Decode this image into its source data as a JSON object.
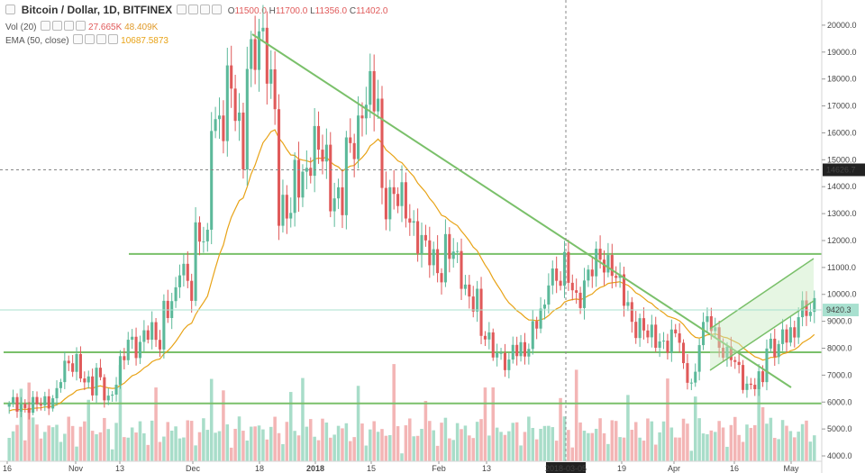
{
  "header": {
    "symbol": "Bitcoin / Dollar, 1D, BITFINEX",
    "ohlc": {
      "o_label": "O",
      "o": "11500.0",
      "h_label": "H",
      "h": "11700.0",
      "l_label": "L",
      "l": "11356.0",
      "c_label": "C",
      "c": "11402.0"
    },
    "vol": {
      "label": "Vol (20)",
      "value1": "27.665K",
      "value2": "48.409K"
    },
    "ema": {
      "label": "EMA (50, close)",
      "value": "10687.5873"
    }
  },
  "colors": {
    "up": "#5cb99a",
    "down": "#e05a5a",
    "up_vol": "#a8ddc9",
    "down_vol": "#f3b5b5",
    "ema": "#e8a317",
    "trend": "#7ac06a",
    "channel_fill": "#c8eac0",
    "label_bg": "#222222",
    "price_badge": "#a8e0cf"
  },
  "chart_data": {
    "type": "candlestick",
    "title": "Bitcoin / Dollar, 1D, BITFINEX",
    "ylim": [
      3800,
      20600
    ],
    "y_ticks": [
      "20000.0",
      "19000.0",
      "18000.0",
      "17000.0",
      "16000.0",
      "15000.0",
      "14000.0",
      "13000.0",
      "12000.0",
      "11000.0",
      "10000.0",
      "9000.0",
      "8000.0",
      "7000.0",
      "6000.0",
      "5000.0",
      "4000.0"
    ],
    "x_ticks": [
      "16",
      "Nov",
      "13",
      "Dec",
      "18",
      "2018",
      "15",
      "Feb",
      "13",
      "19",
      "Apr",
      "16",
      "May"
    ],
    "crosshair_date": "2018-03-05",
    "crosshair_price": "14626.7",
    "last_price": "9420.3",
    "horizontal_levels": [
      11500,
      7850,
      5950
    ],
    "price_anchors": [
      [
        5600,
        5800
      ],
      [
        5900,
        6000
      ],
      [
        5800,
        5800
      ],
      [
        6600,
        7000
      ],
      [
        7400,
        7600
      ],
      [
        6300,
        7200
      ],
      [
        6100,
        6200
      ],
      [
        7800,
        8300
      ],
      [
        8200,
        8500
      ],
      [
        8300,
        9600
      ],
      [
        9700,
        11000
      ],
      [
        10400,
        12500
      ],
      [
        11400,
        16600
      ],
      [
        16800,
        17800
      ],
      [
        15200,
        19200
      ],
      [
        18900,
        19300
      ],
      [
        17200,
        13200
      ],
      [
        12600,
        14400
      ],
      [
        14900,
        15200
      ],
      [
        15200,
        14200
      ],
      [
        13000,
        14800
      ],
      [
        16800,
        17200
      ],
      [
        17000,
        14000
      ],
      [
        13600,
        13400
      ],
      [
        13000,
        12800
      ],
      [
        11200,
        11300
      ],
      [
        11000,
        11900
      ],
      [
        10600,
        10500
      ],
      [
        9600,
        8400
      ],
      [
        8100,
        8100
      ],
      [
        6900,
        7900
      ],
      [
        8200,
        8300
      ],
      [
        9500,
        11200
      ],
      [
        10400,
        10900
      ],
      [
        9700,
        10200
      ],
      [
        11000,
        11500
      ],
      [
        11200,
        10700
      ],
      [
        9300,
        9200
      ],
      [
        8600,
        8300
      ],
      [
        8400,
        8300
      ],
      [
        8300,
        7200
      ],
      [
        6900,
        8200
      ],
      [
        9200,
        8800
      ],
      [
        7300,
        7600
      ],
      [
        6700,
        6600
      ],
      [
        6700,
        8200
      ],
      [
        8200,
        8300
      ],
      [
        8400,
        9800
      ],
      [
        9200,
        9400
      ]
    ],
    "volume_range": [
      0,
      5
    ]
  }
}
